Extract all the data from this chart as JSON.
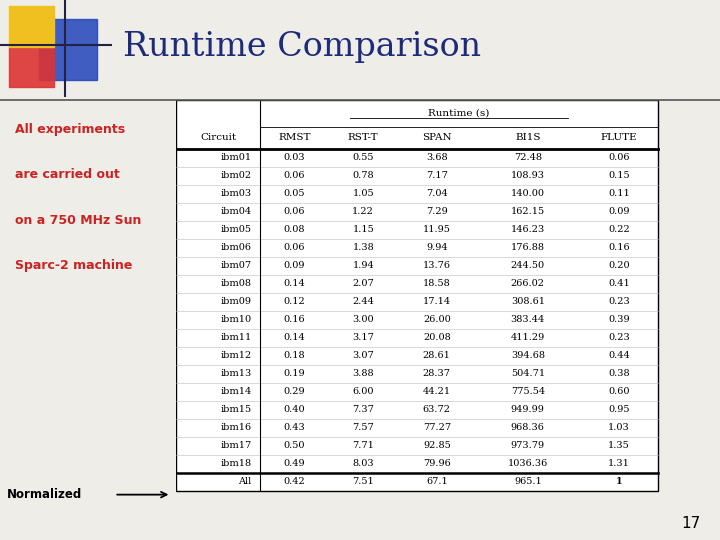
{
  "title": "Runtime Comparison",
  "subtitle_lines": [
    "All experiments",
    "are carried out",
    "on a 750 MHz Sun",
    "Sparc-2 machine"
  ],
  "normalized_label": "Normalized",
  "page_number": "17",
  "header_group": "Runtime (s)",
  "columns": [
    "Circuit",
    "RMST",
    "RST-T",
    "SPAN",
    "BI1S",
    "FLUTE"
  ],
  "rows": [
    [
      "ibm01",
      "0.03",
      "0.55",
      "3.68",
      "72.48",
      "0.06"
    ],
    [
      "ibm02",
      "0.06",
      "0.78",
      "7.17",
      "108.93",
      "0.15"
    ],
    [
      "ibm03",
      "0.05",
      "1.05",
      "7.04",
      "140.00",
      "0.11"
    ],
    [
      "ibm04",
      "0.06",
      "1.22",
      "7.29",
      "162.15",
      "0.09"
    ],
    [
      "ibm05",
      "0.08",
      "1.15",
      "11.95",
      "146.23",
      "0.22"
    ],
    [
      "ibm06",
      "0.06",
      "1.38",
      "9.94",
      "176.88",
      "0.16"
    ],
    [
      "ibm07",
      "0.09",
      "1.94",
      "13.76",
      "244.50",
      "0.20"
    ],
    [
      "ibm08",
      "0.14",
      "2.07",
      "18.58",
      "266.02",
      "0.41"
    ],
    [
      "ibm09",
      "0.12",
      "2.44",
      "17.14",
      "308.61",
      "0.23"
    ],
    [
      "ibm10",
      "0.16",
      "3.00",
      "26.00",
      "383.44",
      "0.39"
    ],
    [
      "ibm11",
      "0.14",
      "3.17",
      "20.08",
      "411.29",
      "0.23"
    ],
    [
      "ibm12",
      "0.18",
      "3.07",
      "28.61",
      "394.68",
      "0.44"
    ],
    [
      "ibm13",
      "0.19",
      "3.88",
      "28.37",
      "504.71",
      "0.38"
    ],
    [
      "ibm14",
      "0.29",
      "6.00",
      "44.21",
      "775.54",
      "0.60"
    ],
    [
      "ibm15",
      "0.40",
      "7.37",
      "63.72",
      "949.99",
      "0.95"
    ],
    [
      "ibm16",
      "0.43",
      "7.57",
      "77.27",
      "968.36",
      "1.03"
    ],
    [
      "ibm17",
      "0.50",
      "7.71",
      "92.85",
      "973.79",
      "1.35"
    ],
    [
      "ibm18",
      "0.49",
      "8.03",
      "79.96",
      "1036.36",
      "1.31"
    ]
  ],
  "footer_row": [
    "All",
    "0.42",
    "7.51",
    "67.1",
    "965.1",
    "1"
  ],
  "bg_color": "#eeede8",
  "title_color": "#1e2a7a",
  "subtitle_color": "#cc2222",
  "table_bg": "#ffffff"
}
